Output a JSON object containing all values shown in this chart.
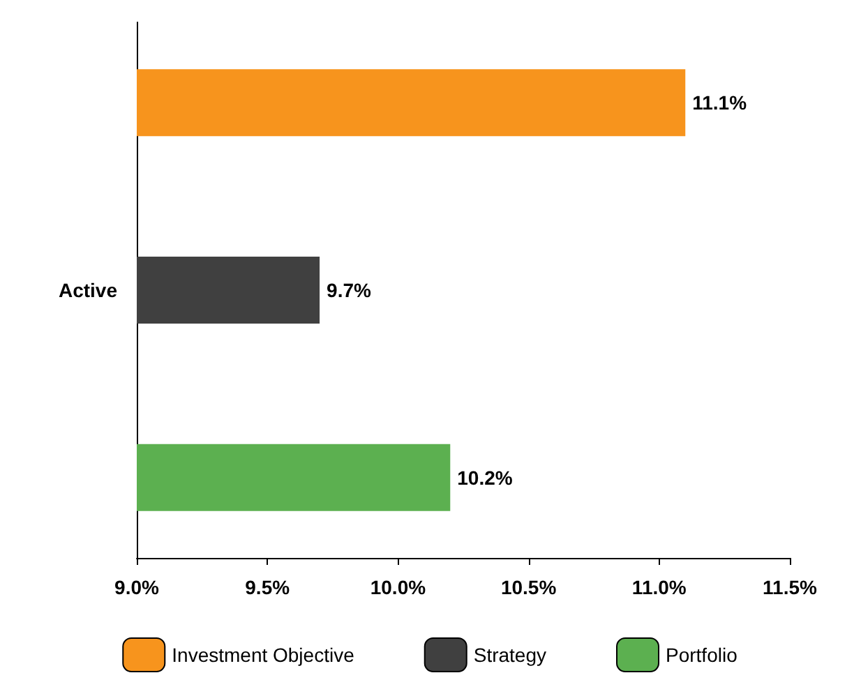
{
  "chart_data": {
    "type": "bar",
    "orientation": "horizontal",
    "categories": [
      "Active"
    ],
    "series": [
      {
        "name": "Investment Objective",
        "color": "#f7941d",
        "values": [
          11.1
        ],
        "value_labels": [
          "11.1%"
        ]
      },
      {
        "name": "Strategy",
        "color": "#404040",
        "values": [
          9.7
        ],
        "value_labels": [
          "9.7%"
        ]
      },
      {
        "name": "Portfolio",
        "color": "#5cb050",
        "values": [
          10.2
        ],
        "value_labels": [
          "10.2%"
        ]
      }
    ],
    "xlim": [
      9.0,
      11.5
    ],
    "xticks": [
      {
        "value": 9.0,
        "label": "9.0%"
      },
      {
        "value": 9.5,
        "label": "9.5%"
      },
      {
        "value": 10.0,
        "label": "10.0%"
      },
      {
        "value": 10.5,
        "label": "10.5%"
      },
      {
        "value": 11.0,
        "label": "11.0%"
      },
      {
        "value": 11.5,
        "label": "11.5%"
      }
    ],
    "grid": false,
    "legend": "bottom"
  }
}
